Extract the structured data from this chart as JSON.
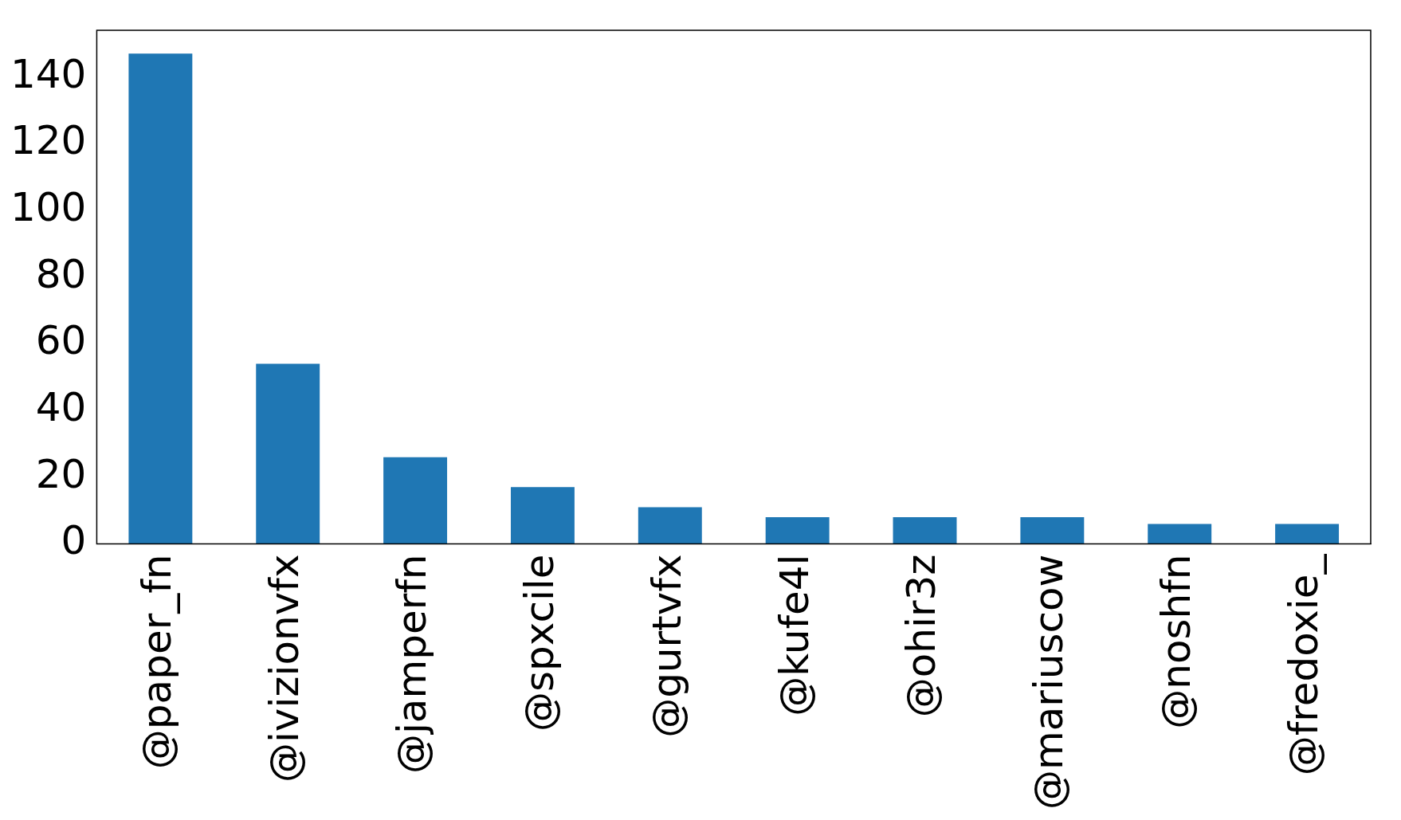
{
  "chart_data": {
    "type": "bar",
    "categories": [
      "@paper_fn",
      "@ivizionvfx",
      "@jamperfn",
      "@spxcile",
      "@gurtvfx",
      "@kufe4l",
      "@ohir3z",
      "@mariuscow",
      "@noshfn",
      "@fredoxie_"
    ],
    "values": [
      147,
      54,
      26,
      17,
      11,
      8,
      8,
      8,
      6,
      6
    ],
    "color": "#1f77b4",
    "ylim": [
      0,
      154
    ],
    "yticks": [
      0,
      20,
      40,
      60,
      80,
      100,
      120,
      140
    ],
    "grid": false,
    "legend": false
  }
}
